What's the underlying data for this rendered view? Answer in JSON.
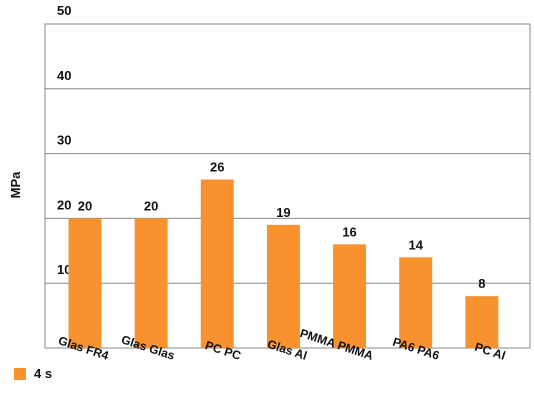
{
  "chart_data": {
    "type": "bar",
    "categories": [
      "Glas FR4",
      "Glas Glas",
      "PC PC",
      "Glas Al",
      "PMMA PMMA",
      "PA6 PA6",
      "PC Al"
    ],
    "series": [
      {
        "name": "4 s",
        "values": [
          20,
          20,
          26,
          19,
          16,
          14,
          8
        ],
        "color": "#f7922e"
      }
    ],
    "ylabel": "MPa",
    "ylim": [
      0,
      50
    ],
    "yticks": [
      10,
      20,
      30,
      40,
      50
    ],
    "grid": true,
    "legend_position": "bottom-left",
    "data_labels": true
  }
}
